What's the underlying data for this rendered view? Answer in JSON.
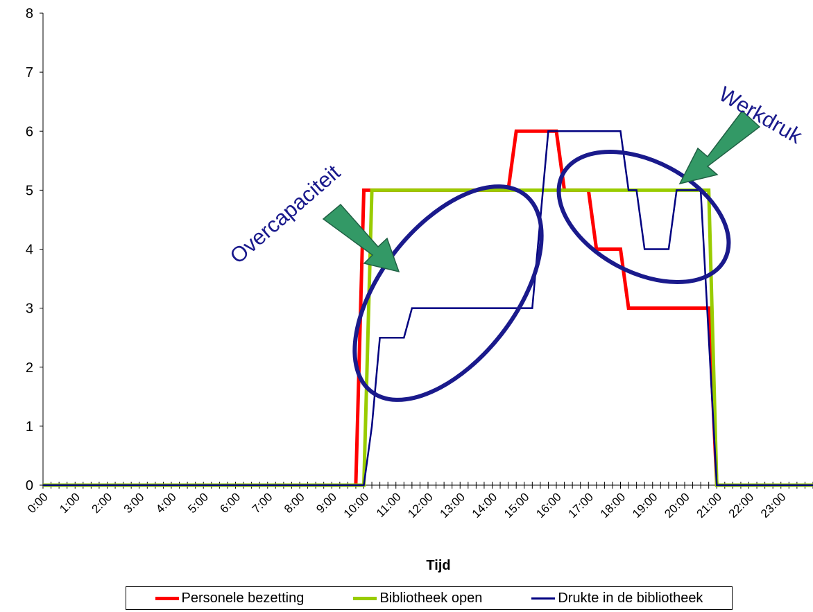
{
  "chart_data": {
    "type": "line",
    "title": "",
    "xlabel": "Tijd",
    "ylabel": "",
    "ylim": [
      0,
      8
    ],
    "yticks": [
      "0",
      "1",
      "2",
      "3",
      "4",
      "5",
      "6",
      "7",
      "8"
    ],
    "x_unit": "hours",
    "xlim": [
      0,
      24
    ],
    "xtick_labels": [
      "0:00",
      "1:00",
      "2:00",
      "3:00",
      "4:00",
      "5:00",
      "6:00",
      "7:00",
      "8:00",
      "9:00",
      "10:00",
      "11:00",
      "12:00",
      "13:00",
      "14:00",
      "15:00",
      "16:00",
      "17:00",
      "18:00",
      "19:00",
      "20:00",
      "21:00",
      "22:00",
      "23:00"
    ],
    "legend_position": "bottom",
    "series": [
      {
        "name": "Personele bezetting",
        "color": "#ff0000",
        "points": [
          [
            0,
            0
          ],
          [
            9.75,
            0
          ],
          [
            10,
            5
          ],
          [
            14.5,
            5
          ],
          [
            14.75,
            6
          ],
          [
            16,
            6
          ],
          [
            16.25,
            5
          ],
          [
            17,
            5
          ],
          [
            17.25,
            4
          ],
          [
            18,
            4
          ],
          [
            18.25,
            3
          ],
          [
            20.75,
            3
          ],
          [
            21,
            0
          ],
          [
            24,
            0
          ]
        ]
      },
      {
        "name": "Bibliotheek open",
        "color": "#99cc00",
        "points": [
          [
            0,
            0
          ],
          [
            10,
            0
          ],
          [
            10.25,
            5
          ],
          [
            20.75,
            5
          ],
          [
            21,
            0
          ],
          [
            24,
            0
          ]
        ]
      },
      {
        "name": "Drukte in de bibliotheek",
        "color": "#000080",
        "points": [
          [
            0,
            0
          ],
          [
            10,
            0
          ],
          [
            10.25,
            1
          ],
          [
            10.5,
            2.5
          ],
          [
            11.25,
            2.5
          ],
          [
            11.5,
            3
          ],
          [
            15.25,
            3
          ],
          [
            15.75,
            6
          ],
          [
            16.25,
            6
          ],
          [
            18,
            6
          ],
          [
            18.25,
            5
          ],
          [
            18.5,
            5
          ],
          [
            18.75,
            4
          ],
          [
            19.5,
            4
          ],
          [
            19.75,
            5
          ],
          [
            20.5,
            5
          ],
          [
            21,
            0
          ],
          [
            24,
            0
          ]
        ]
      }
    ],
    "annotations": [
      {
        "text": "Overcapaciteit",
        "color": "#1a1a8c"
      },
      {
        "text": "Werkdruk",
        "color": "#1a1a8c"
      }
    ],
    "highlight_colors": {
      "ellipse": "#1a1a8c",
      "arrow": "#339966"
    }
  }
}
